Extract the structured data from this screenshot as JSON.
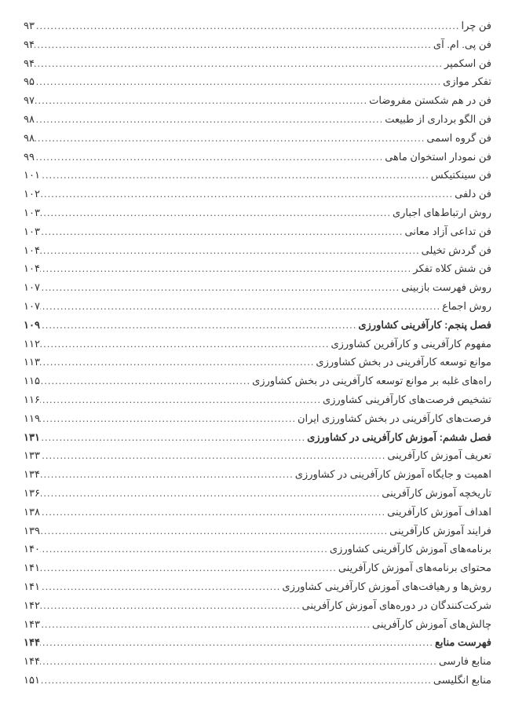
{
  "text_color": "#333333",
  "background_color": "#ffffff",
  "font_size_pt": 10,
  "line_height": 1.6,
  "rows": [
    {
      "title": "فن چرا",
      "page": "۹۳",
      "bold": false
    },
    {
      "title": "فن پی. ام. آی",
      "page": "۹۴",
      "bold": false
    },
    {
      "title": "فن اسکمپر",
      "page": "۹۴",
      "bold": false
    },
    {
      "title": "تفکر موازی",
      "page": "۹۵",
      "bold": false
    },
    {
      "title": "فن در هم شکستن مفروضات",
      "page": "۹۷",
      "bold": false
    },
    {
      "title": "فن الگو برداری از طبیعت",
      "page": "۹۸",
      "bold": false
    },
    {
      "title": "فن گروه اسمی",
      "page": "۹۸",
      "bold": false
    },
    {
      "title": "فن نمودار استخوان ماهی",
      "page": "۹۹",
      "bold": false
    },
    {
      "title": "فن سینکتیکس",
      "page": "۱۰۱",
      "bold": false
    },
    {
      "title": "فن دلفی",
      "page": "۱۰۲",
      "bold": false
    },
    {
      "title": "روش ارتباط‌های اجباری",
      "page": "۱۰۳",
      "bold": false
    },
    {
      "title": "فن تداعی آزاد معانی",
      "page": "۱۰۳",
      "bold": false
    },
    {
      "title": "فن گردش تخیلی",
      "page": "۱۰۴",
      "bold": false
    },
    {
      "title": "فن شش کلاه تفکر",
      "page": "۱۰۴",
      "bold": false
    },
    {
      "title": "روش فهرست بازبینی",
      "page": "۱۰۷",
      "bold": false
    },
    {
      "title": "روش اجماع",
      "page": "۱۰۷",
      "bold": false
    },
    {
      "title": "فصل پنجم: کارآفرینی کشاورزی",
      "page": "۱۰۹",
      "bold": true
    },
    {
      "title": "مفهوم کارآفرینی و کارآفرین کشاورزی",
      "page": "۱۱۲",
      "bold": false
    },
    {
      "title": "موانع توسعه کارآفرینی در بخش کشاورزی",
      "page": "۱۱۳",
      "bold": false
    },
    {
      "title": "راه‌های غلبه بر موانع توسعه کارآفرینی در بخش کشاورزی",
      "page": "۱۱۵",
      "bold": false
    },
    {
      "title": "تشخیص فرصت‌های کارآفرینی کشاورزی",
      "page": "۱۱۶",
      "bold": false
    },
    {
      "title": "فرصت‌های کارآفرینی در بخش کشاورزی ایران",
      "page": "۱۱۹",
      "bold": false
    },
    {
      "title": "فصل ششم: آموزش کارآفرینی در کشاورزی",
      "page": "۱۳۱",
      "bold": true
    },
    {
      "title": "تعریف آموزش کارآفرینی",
      "page": "۱۳۳",
      "bold": false
    },
    {
      "title": "اهمیت و جایگاه آموزش کارآفرینی در کشاورزی",
      "page": "۱۳۴",
      "bold": false
    },
    {
      "title": "تاریخچه آموزش کارآفرینی",
      "page": "۱۳۶",
      "bold": false
    },
    {
      "title": "اهداف آموزش کارآفرینی",
      "page": "۱۳۸",
      "bold": false
    },
    {
      "title": "فرایند آموزش کارآفرینی",
      "page": "۱۳۹",
      "bold": false
    },
    {
      "title": "برنامه‌های آموزش کارآفرینی کشاورزی",
      "page": "۱۴۰",
      "bold": false
    },
    {
      "title": "محتوای برنامه‌های آموزش کارآفرینی",
      "page": "۱۴۱",
      "bold": false
    },
    {
      "title": "روش‌ها و رهیافت‌های آموزش کارآفرینی کشاورزی",
      "page": "۱۴۱",
      "bold": false
    },
    {
      "title": "شرکت‌کنندگان در دوره‌های آموزش کارآفرینی",
      "page": "۱۴۲",
      "bold": false
    },
    {
      "title": "چالش‌های آموزش کارآفرینی",
      "page": "۱۴۳",
      "bold": false
    },
    {
      "title": "فهرست منابع",
      "page": "۱۴۴",
      "bold": true
    },
    {
      "title": "منابع فارسی",
      "page": "۱۴۴",
      "bold": false
    },
    {
      "title": "منابع انگلیسی",
      "page": "۱۵۱",
      "bold": false
    }
  ]
}
